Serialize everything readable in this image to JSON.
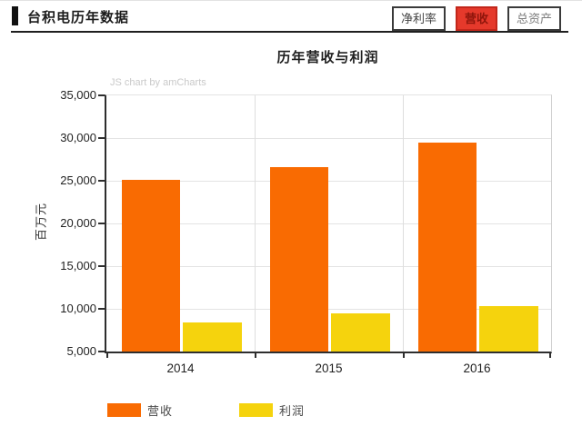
{
  "header": {
    "title": "台积电历年数据",
    "tabs": [
      {
        "label": "净利率",
        "active": false
      },
      {
        "label": "营收",
        "active": true
      },
      {
        "label": "总资产",
        "active": false
      }
    ]
  },
  "chart": {
    "title": "历年营收与利润",
    "watermark": "JS chart by amCharts",
    "ylabel": "百万元"
  },
  "chart_data": {
    "type": "bar",
    "title": "历年营收与利润",
    "xlabel": "",
    "ylabel": "百万元",
    "categories": [
      "2014",
      "2015",
      "2016"
    ],
    "series": [
      {
        "name": "营收",
        "color": "#F96B02",
        "values": [
          25100,
          26600,
          29500
        ]
      },
      {
        "name": "利润",
        "color": "#F5D30D",
        "values": [
          8450,
          9500,
          10300
        ]
      }
    ],
    "ylim": [
      5000,
      35000
    ],
    "ytick_step": 5000,
    "ytick_labels": [
      "5,000",
      "10,000",
      "15,000",
      "20,000",
      "25,000",
      "30,000",
      "35,000"
    ],
    "grid": true,
    "legend_position": "bottom"
  },
  "colors": {
    "active_tab_bg": "#E5392B",
    "active_tab_text": "#8E150B",
    "active_tab_border": "#C2271B",
    "axis": "#2E2E2E",
    "grid_h": "#E3E3E3",
    "grid_v": "#DEDEDE",
    "watermark": "#C9C9C9"
  }
}
